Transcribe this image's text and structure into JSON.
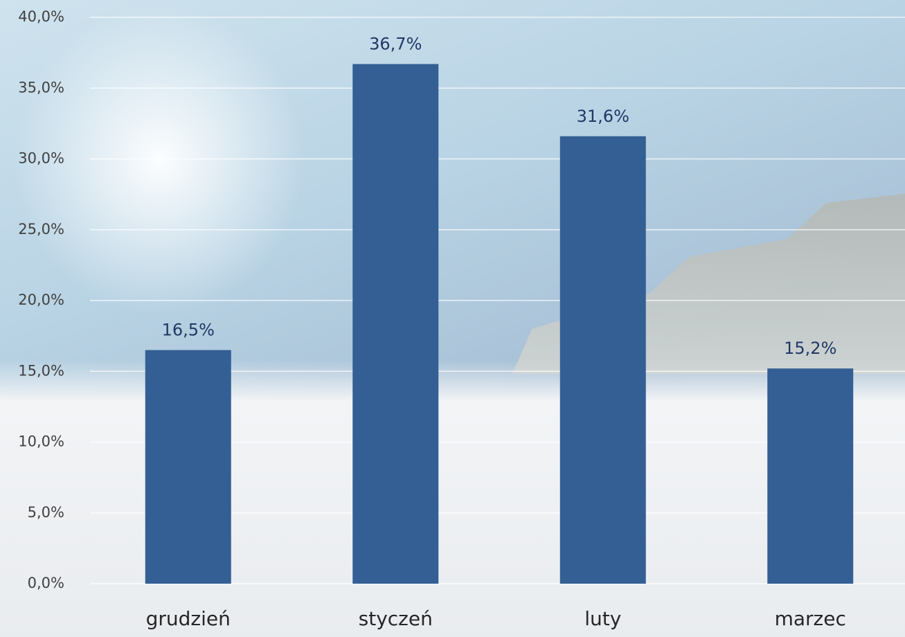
{
  "chart_data": {
    "type": "bar",
    "categories": [
      "grudzień",
      "styczeń",
      "luty",
      "marzec"
    ],
    "values": [
      16.5,
      36.7,
      31.6,
      15.2
    ],
    "value_labels": [
      "16,5%",
      "36,7%",
      "31,6%",
      "15,2%"
    ],
    "color": "#345f94",
    "ylim": [
      0,
      40
    ],
    "yticks": [
      {
        "value": 0,
        "label": "0,0%"
      },
      {
        "value": 5,
        "label": "5,0%"
      },
      {
        "value": 10,
        "label": "10,0%"
      },
      {
        "value": 15,
        "label": "15,0%"
      },
      {
        "value": 20,
        "label": "20,0%"
      },
      {
        "value": 25,
        "label": "25,0%"
      },
      {
        "value": 30,
        "label": "30,0%"
      },
      {
        "value": 35,
        "label": "35,0%"
      },
      {
        "value": 40,
        "label": "40,0%"
      }
    ],
    "grid": true
  }
}
